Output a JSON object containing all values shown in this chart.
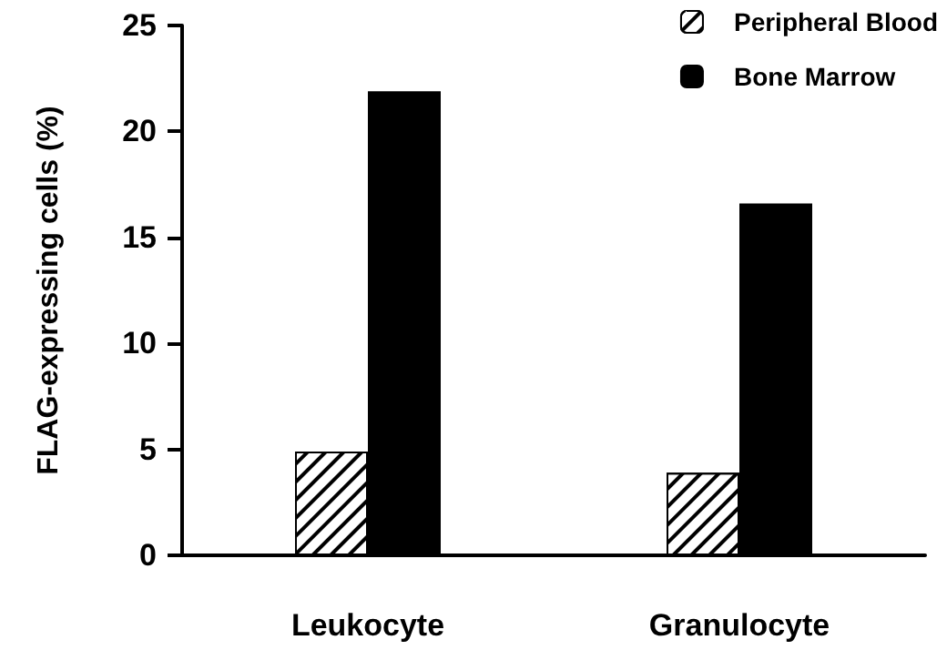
{
  "chart_data": {
    "type": "bar",
    "ylabel": "FLAG-expressing cells (%)",
    "categories": [
      "Leukocyte",
      "Granulocyte"
    ],
    "series": [
      {
        "name": "Peripheral Blood",
        "color": "#ffffff",
        "values": [
          4.9,
          3.9
        ]
      },
      {
        "name": "Bone Marrow",
        "color": "#000000",
        "values": [
          21.9,
          16.6
        ]
      }
    ],
    "ylim": [
      0,
      25
    ],
    "yticks": [
      0,
      5,
      10,
      15,
      20,
      25
    ],
    "grid": false,
    "legend": "top right"
  }
}
